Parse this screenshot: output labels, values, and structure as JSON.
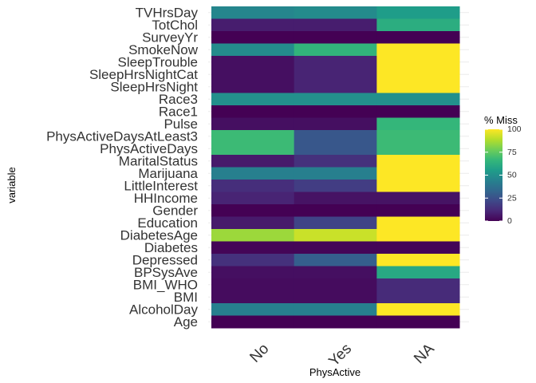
{
  "chart_data": {
    "type": "heatmap",
    "xlabel": "PhysActive",
    "ylabel": "variable",
    "x_categories": [
      "No",
      "Yes",
      "NA"
    ],
    "y_categories_top_to_bottom": [
      "TVHrsDay",
      "TotChol",
      "SurveyYr",
      "SmokeNow",
      "SleepTrouble",
      "SleepHrsNightCat",
      "SleepHrsNight",
      "Race3",
      "Race1",
      "Pulse",
      "PhysActiveDaysAtLeast3",
      "PhysActiveDays",
      "MaritalStatus",
      "Marijuana",
      "LittleInterest",
      "HHIncome",
      "Gender",
      "Education",
      "DiabetesAge",
      "Diabetes",
      "Depressed",
      "BPSysAve",
      "BMI_WHO",
      "BMI",
      "AlcoholDay",
      "Age"
    ],
    "values": [
      [
        46,
        48,
        55
      ],
      [
        8,
        8,
        62
      ],
      [
        0,
        0,
        0
      ],
      [
        48,
        65,
        100
      ],
      [
        4,
        10,
        100
      ],
      [
        4,
        10,
        100
      ],
      [
        4,
        10,
        100
      ],
      [
        50,
        50,
        50
      ],
      [
        0,
        0,
        0
      ],
      [
        4,
        4,
        66
      ],
      [
        68,
        27,
        68
      ],
      [
        68,
        27,
        68
      ],
      [
        7,
        14,
        100
      ],
      [
        43,
        43,
        100
      ],
      [
        13,
        18,
        100
      ],
      [
        10,
        5,
        5
      ],
      [
        0,
        0,
        0
      ],
      [
        7,
        20,
        100
      ],
      [
        85,
        92,
        100
      ],
      [
        1,
        1,
        1
      ],
      [
        14,
        30,
        100
      ],
      [
        4,
        4,
        60
      ],
      [
        3,
        3,
        12
      ],
      [
        3,
        3,
        12
      ],
      [
        43,
        43,
        100
      ],
      [
        0,
        0,
        0
      ]
    ],
    "color_scale": {
      "name": "viridis",
      "min": 0,
      "max": 100,
      "stops": [
        "#440154",
        "#482878",
        "#3e4a89",
        "#31688e",
        "#26828e",
        "#1f9e89",
        "#35b779",
        "#6ece58",
        "#b5de2b",
        "#fde725"
      ]
    },
    "legend": {
      "title": "% Miss",
      "ticks": [
        0,
        25,
        50,
        75,
        100
      ],
      "position": "right"
    }
  }
}
